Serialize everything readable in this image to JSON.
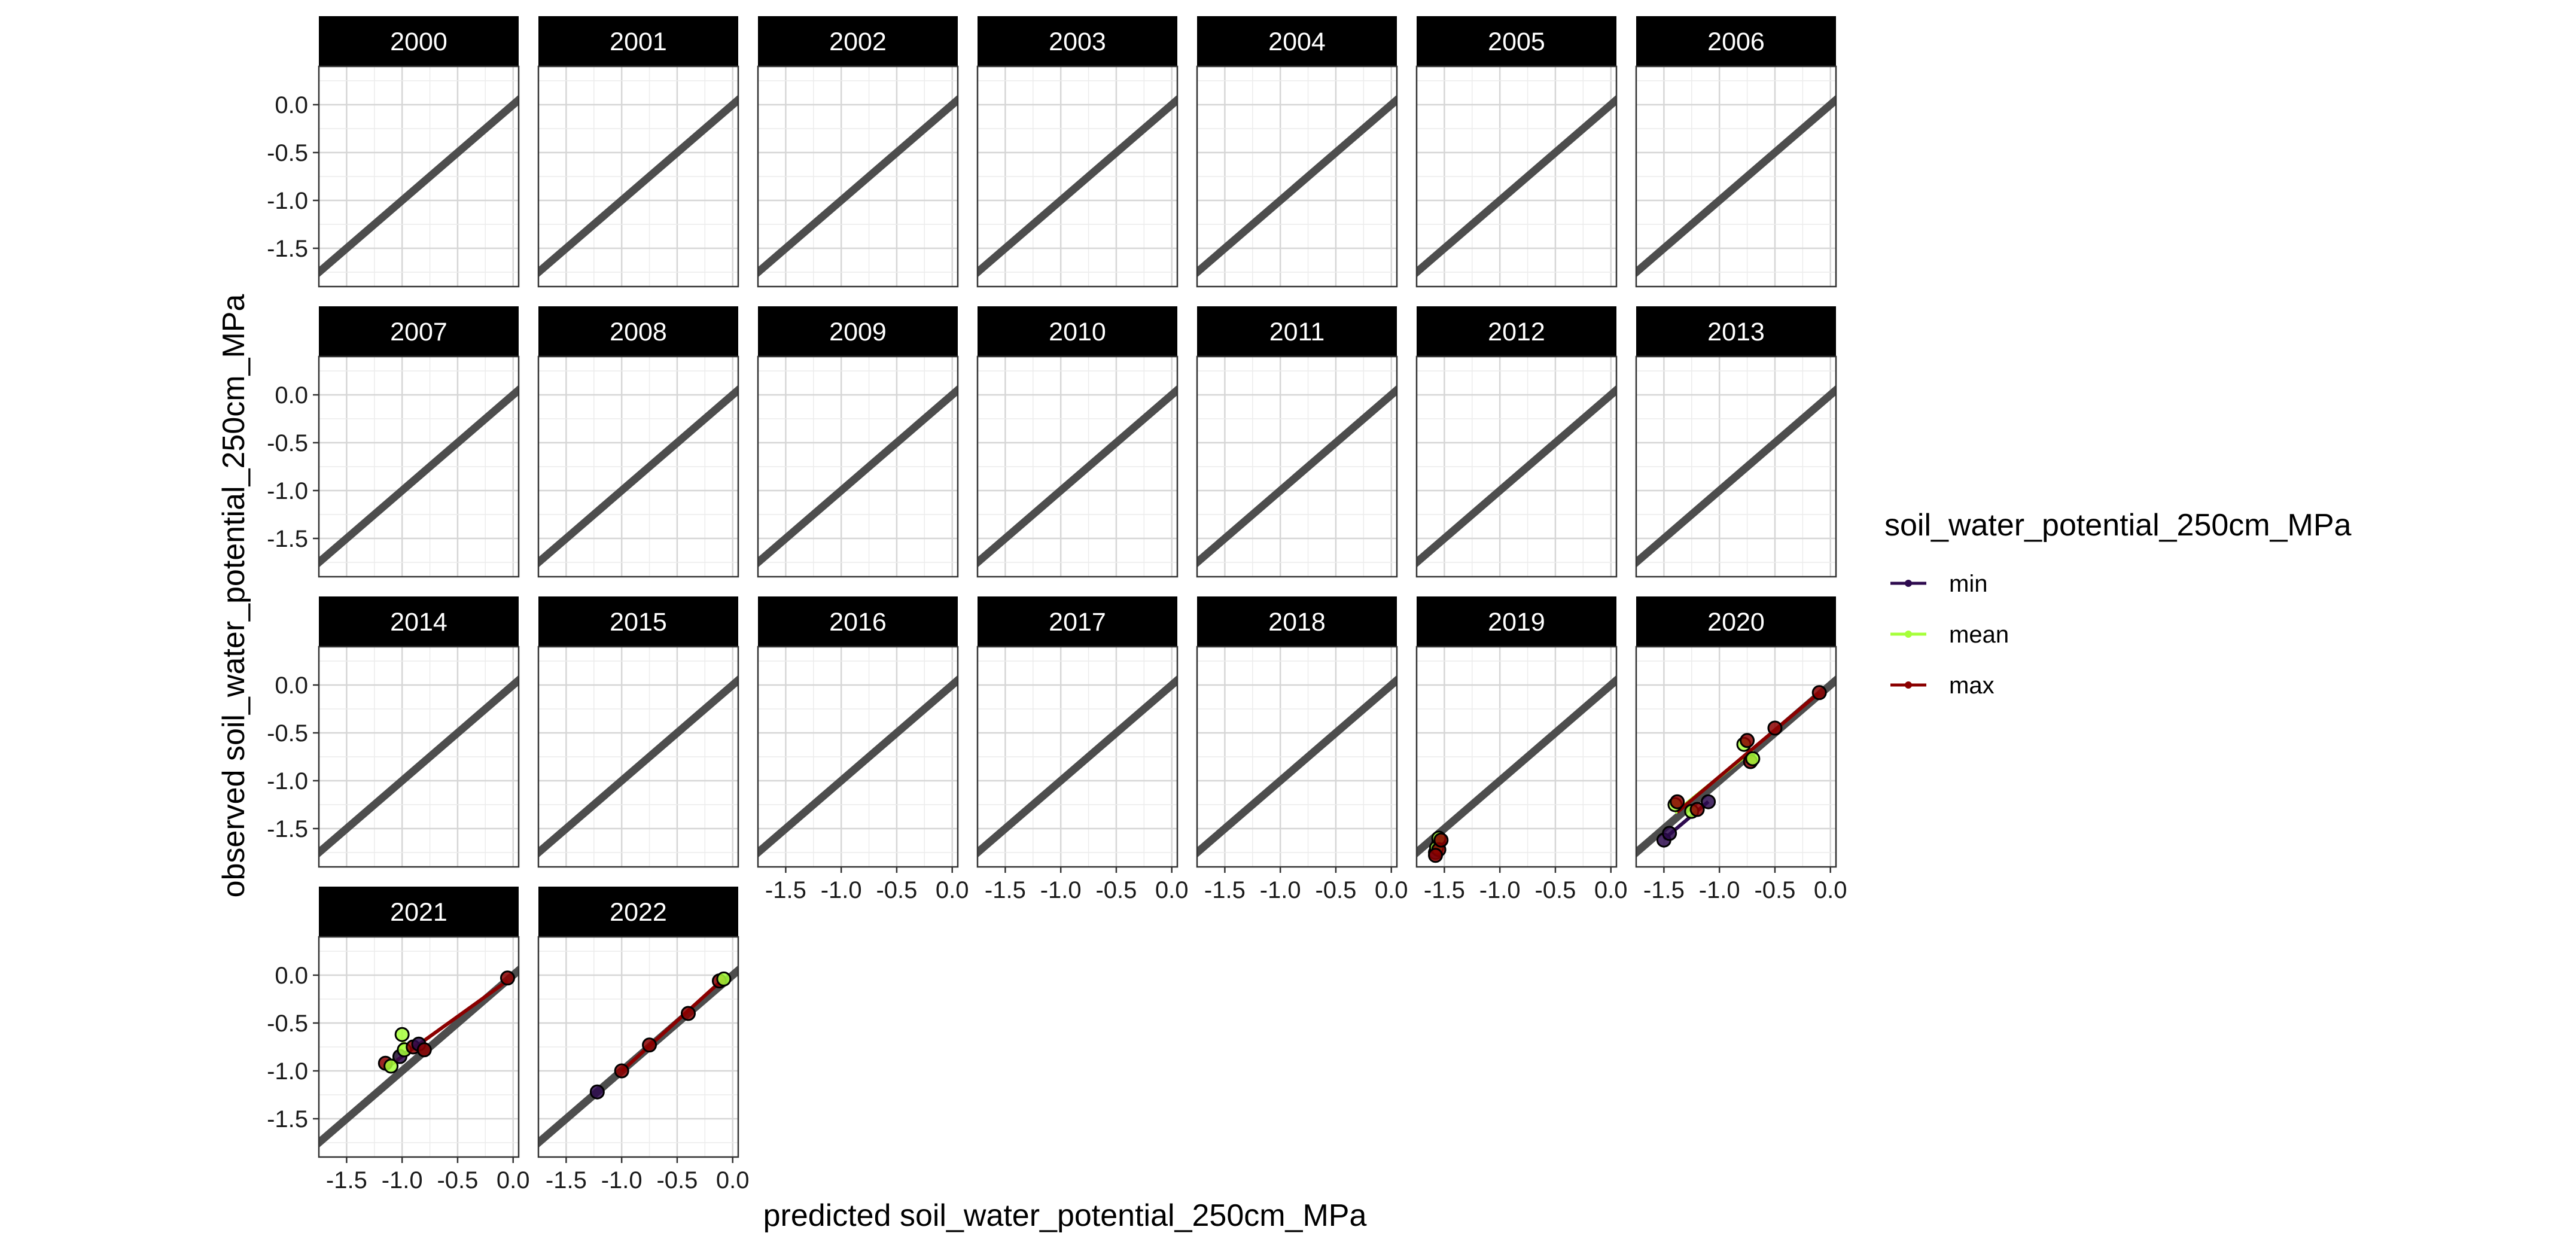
{
  "chart_data": {
    "type": "scatter",
    "facet_by": "year",
    "panels": [
      {
        "year": "2000",
        "points": []
      },
      {
        "year": "2001",
        "points": []
      },
      {
        "year": "2002",
        "points": []
      },
      {
        "year": "2003",
        "points": []
      },
      {
        "year": "2004",
        "points": []
      },
      {
        "year": "2005",
        "points": []
      },
      {
        "year": "2006",
        "points": []
      },
      {
        "year": "2007",
        "points": []
      },
      {
        "year": "2008",
        "points": []
      },
      {
        "year": "2009",
        "points": []
      },
      {
        "year": "2010",
        "points": []
      },
      {
        "year": "2011",
        "points": []
      },
      {
        "year": "2012",
        "points": []
      },
      {
        "year": "2013",
        "points": []
      },
      {
        "year": "2014",
        "points": []
      },
      {
        "year": "2015",
        "points": []
      },
      {
        "year": "2016",
        "points": []
      },
      {
        "year": "2017",
        "points": []
      },
      {
        "year": "2018",
        "points": []
      },
      {
        "year": "2019",
        "points": [
          {
            "series": "min",
            "x": -1.58,
            "y": -1.75
          },
          {
            "series": "min",
            "x": -1.55,
            "y": -1.65
          },
          {
            "series": "mean",
            "x": -1.57,
            "y": -1.7
          },
          {
            "series": "mean",
            "x": -1.55,
            "y": -1.6
          },
          {
            "series": "max",
            "x": -1.55,
            "y": -1.72
          },
          {
            "series": "max",
            "x": -1.53,
            "y": -1.62
          },
          {
            "series": "max",
            "x": -1.58,
            "y": -1.78
          }
        ]
      },
      {
        "year": "2020",
        "points": [
          {
            "series": "min",
            "x": -1.5,
            "y": -1.62
          },
          {
            "series": "min",
            "x": -1.45,
            "y": -1.55
          },
          {
            "series": "mean",
            "x": -1.4,
            "y": -1.25
          },
          {
            "series": "mean",
            "x": -1.25,
            "y": -1.32
          },
          {
            "series": "max",
            "x": -1.38,
            "y": -1.22
          },
          {
            "series": "max",
            "x": -1.2,
            "y": -1.3
          },
          {
            "series": "min",
            "x": -1.1,
            "y": -1.22
          },
          {
            "series": "mean",
            "x": -0.78,
            "y": -0.62
          },
          {
            "series": "max",
            "x": -0.75,
            "y": -0.58
          },
          {
            "series": "max",
            "x": -0.72,
            "y": -0.8
          },
          {
            "series": "mean",
            "x": -0.7,
            "y": -0.77
          },
          {
            "series": "max",
            "x": -0.1,
            "y": -0.08
          },
          {
            "series": "max",
            "x": -0.5,
            "y": -0.45
          }
        ]
      },
      {
        "year": "2021",
        "points": [
          {
            "series": "max",
            "x": -1.15,
            "y": -0.92
          },
          {
            "series": "mean",
            "x": -1.1,
            "y": -0.95
          },
          {
            "series": "min",
            "x": -1.02,
            "y": -0.85
          },
          {
            "series": "mean",
            "x": -1.0,
            "y": -0.62
          },
          {
            "series": "mean",
            "x": -0.98,
            "y": -0.78
          },
          {
            "series": "max",
            "x": -0.9,
            "y": -0.75
          },
          {
            "series": "min",
            "x": -0.85,
            "y": -0.72
          },
          {
            "series": "max",
            "x": -0.8,
            "y": -0.78
          },
          {
            "series": "max",
            "x": -0.05,
            "y": -0.03
          }
        ]
      },
      {
        "year": "2022",
        "points": [
          {
            "series": "min",
            "x": -1.22,
            "y": -1.22
          },
          {
            "series": "max",
            "x": -1.0,
            "y": -1.0
          },
          {
            "series": "max",
            "x": -0.75,
            "y": -0.73
          },
          {
            "series": "max",
            "x": -0.4,
            "y": -0.4
          },
          {
            "series": "max",
            "x": -0.12,
            "y": -0.06
          },
          {
            "series": "mean",
            "x": -0.08,
            "y": -0.04
          }
        ]
      }
    ],
    "reference_line": "y = x",
    "fit_lines": {
      "type": "linear regression per series"
    },
    "xlabel": "predicted soil_water_potential_250cm_MPa",
    "ylabel": "observed soil_water_potential_250cm_MPa",
    "xlim": [
      -1.75,
      0.05
    ],
    "ylim": [
      -1.9,
      0.4
    ],
    "x_ticks": [
      "-1.5",
      "-1.0",
      "-0.5",
      "0.0"
    ],
    "y_ticks": [
      "0.0",
      "-0.5",
      "-1.0",
      "-1.5"
    ],
    "grid": true,
    "legend": {
      "title": "soil_water_potential_250cm_MPa",
      "position": "right",
      "items": [
        {
          "label": "min",
          "color": "#2d0a4e"
        },
        {
          "label": "mean",
          "color": "#a6ff3a"
        },
        {
          "label": "max",
          "color": "#8b0000"
        }
      ]
    },
    "colors": {
      "identity_line": "#4d4d4d",
      "strip_bg": "#000000",
      "point_outline": "#000000"
    }
  }
}
